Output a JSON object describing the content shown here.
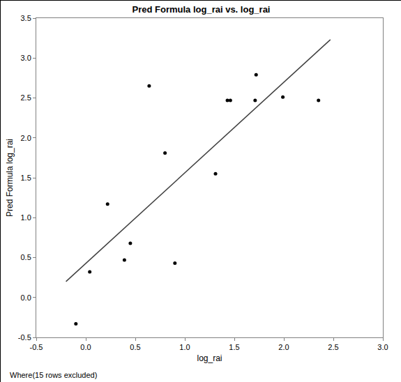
{
  "chart_data": {
    "type": "scatter",
    "title": "Pred Formula log_rai vs. log_rai",
    "x_label": "log_rai",
    "y_label": "Pred Formula log_rai",
    "annotations": [
      "Where(15 rows excluded)"
    ],
    "series": [
      {
        "type": "scatter",
        "color": "#000000",
        "marker": "circle",
        "x": [
          -0.1,
          0.04,
          0.22,
          0.39,
          0.45,
          0.64,
          0.8,
          0.9,
          1.31,
          1.43,
          1.46,
          1.71,
          1.72,
          1.99,
          2.35
        ],
        "values": [
          -0.33,
          0.32,
          1.17,
          0.47,
          0.68,
          2.65,
          1.81,
          0.43,
          1.55,
          2.47,
          2.47,
          2.47,
          2.79,
          2.51,
          2.47
        ]
      },
      {
        "type": "line",
        "color": "#404040",
        "line_style": "solid",
        "x": [
          -0.2,
          2.47
        ],
        "values": [
          0.2,
          3.23
        ]
      }
    ],
    "xlim": [
      -0.5,
      3.0
    ],
    "xticks": [
      -0.5,
      {
        "value": 0,
        "label": "0.0"
      },
      0.5,
      {
        "value": 1,
        "label": "1.0"
      },
      1.5,
      {
        "value": 2,
        "label": "2.0"
      },
      2.5,
      {
        "value": 3,
        "label": "3.0"
      }
    ],
    "ylim": [
      -0.5,
      3.5
    ],
    "yticks": [
      -0.5,
      {
        "value": 0,
        "label": "0.0"
      },
      0.5,
      {
        "value": 1,
        "label": "1.0"
      },
      1.5,
      {
        "value": 2,
        "label": "2.0"
      },
      2.5,
      {
        "value": 3,
        "label": "3.0"
      },
      3.5
    ],
    "grid": false
  }
}
